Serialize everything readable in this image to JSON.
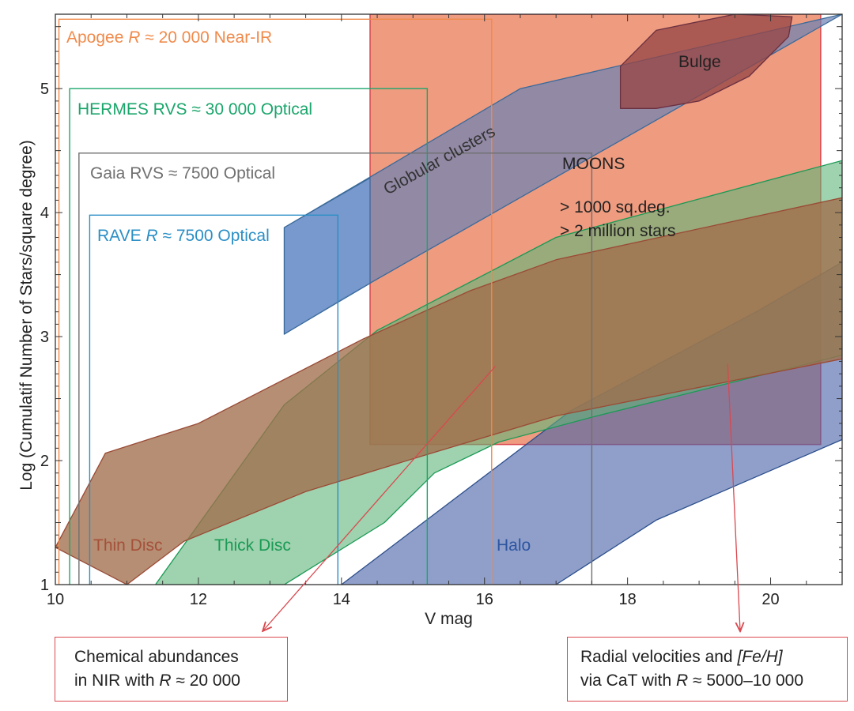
{
  "chart_data": {
    "type": "area",
    "xlabel": "V mag",
    "ylabel": "Log (Cumulatif Number of Stars/square degree)",
    "xlim": [
      10,
      21
    ],
    "ylim": [
      1,
      5.6
    ],
    "xticks": [
      10,
      12,
      14,
      16,
      18,
      20
    ],
    "yticks": [
      1,
      2,
      3,
      4,
      5
    ],
    "survey_boxes": [
      {
        "id": "apogee",
        "label_pre": "Apogee ",
        "label_var": "R",
        "label_post": " ≈ 20 000 Near-IR",
        "color": "#f08a4b",
        "x": [
          10.05,
          16.1
        ],
        "y": [
          1,
          5.56
        ]
      },
      {
        "id": "hermes",
        "label_pre": "HERMES RVS ≈ 30 000 Optical",
        "label_var": "",
        "label_post": "",
        "color": "#1aa66b",
        "x": [
          10.2,
          15.2
        ],
        "y": [
          1,
          5.0
        ]
      },
      {
        "id": "gaia",
        "label_pre": "Gaia RVS ≈ 7500 Optical",
        "label_var": "",
        "label_post": "",
        "color": "#707070",
        "x": [
          10.33,
          17.5
        ],
        "y": [
          1,
          4.48
        ]
      },
      {
        "id": "rave",
        "label_pre": "RAVE ",
        "label_var": "R",
        "label_post": " ≈ 7500 Optical",
        "color": "#2b8fc6",
        "x": [
          10.48,
          13.95
        ],
        "y": [
          1,
          3.98
        ]
      }
    ],
    "moons": {
      "title": "MOONS",
      "line1": "> 1000 sq.deg.",
      "line2": "> 2 million stars",
      "x": [
        14.4,
        20.7
      ],
      "y": [
        2.13,
        5.6
      ],
      "fill": "#ef9b7f",
      "edge": "#d9484f"
    },
    "populations": [
      {
        "name": "Thin Disc",
        "fill": "rgba(160,110,75,0.78)",
        "edge": "#9a4a35",
        "label_color": "#a5503a",
        "upper": [
          [
            10,
            1.3
          ],
          [
            10.7,
            2.06
          ],
          [
            12,
            2.3
          ],
          [
            14.3,
            2.98
          ],
          [
            15.8,
            3.37
          ],
          [
            17,
            3.62
          ],
          [
            21,
            4.12
          ]
        ],
        "lower": [
          [
            21,
            2.82
          ],
          [
            17,
            2.36
          ],
          [
            15.2,
            2.05
          ],
          [
            13.5,
            1.75
          ],
          [
            11.8,
            1.35
          ],
          [
            11,
            1
          ]
        ]
      },
      {
        "name": "Thick Disc",
        "fill": "rgba(95,180,120,0.60)",
        "edge": "#1a9a55",
        "label_color": "#1a9a55",
        "upper": [
          [
            11.4,
            1
          ],
          [
            13.2,
            2.45
          ],
          [
            14.5,
            3.05
          ],
          [
            17,
            3.8
          ],
          [
            21,
            4.42
          ]
        ],
        "lower": [
          [
            21,
            2.85
          ],
          [
            17.5,
            2.35
          ],
          [
            16.2,
            2.15
          ],
          [
            15.3,
            1.9
          ],
          [
            14.6,
            1.5
          ],
          [
            13.2,
            1
          ]
        ]
      },
      {
        "name": "Halo",
        "fill": "rgba(75,100,170,0.62)",
        "edge": "#2d4f8c",
        "label_color": "#2d55a0",
        "upper": [
          [
            14.0,
            1
          ],
          [
            17.2,
            2.4
          ],
          [
            19.8,
            3.2
          ],
          [
            21,
            3.6
          ]
        ],
        "lower": [
          [
            21,
            2.17
          ],
          [
            18.4,
            1.52
          ],
          [
            17.0,
            1
          ]
        ]
      },
      {
        "name": "Globular clusters",
        "fill": "rgba(110,130,180,0.72)",
        "edge": "#3a6a9a",
        "label_color": "#333333",
        "upper": [
          [
            13.2,
            3.88
          ],
          [
            16.5,
            5.0
          ],
          [
            21,
            5.6
          ]
        ],
        "lower": [
          [
            21,
            5.6
          ],
          [
            14,
            3.3
          ],
          [
            13.2,
            3.02
          ]
        ]
      },
      {
        "name": "Bulge",
        "fill": "rgba(150,70,70,0.78)",
        "edge": "#6a3040",
        "label_color": "#222222",
        "shape": [
          [
            17.9,
            4.84
          ],
          [
            17.9,
            5.18
          ],
          [
            18.4,
            5.47
          ],
          [
            19.5,
            5.6
          ],
          [
            20.3,
            5.58
          ],
          [
            20.25,
            5.42
          ],
          [
            19.7,
            5.1
          ],
          [
            19.0,
            4.9
          ],
          [
            18.4,
            4.84
          ]
        ]
      }
    ],
    "callouts": [
      {
        "line1": "Chemical abundances",
        "line2_pre": "in NIR with ",
        "line2_var": "R",
        "line2_post": " ≈ 20 000",
        "arrow_from": [
          16.15,
          2.76
        ]
      },
      {
        "line1_pre": "Radial velocities and ",
        "line1_var": "[Fe/H]",
        "line1_post": "",
        "line2_pre": "via CaT with ",
        "line2_var": "R",
        "line2_post": " ≈ 5000–10 000",
        "arrow_from": [
          19.4,
          2.78
        ]
      }
    ]
  }
}
